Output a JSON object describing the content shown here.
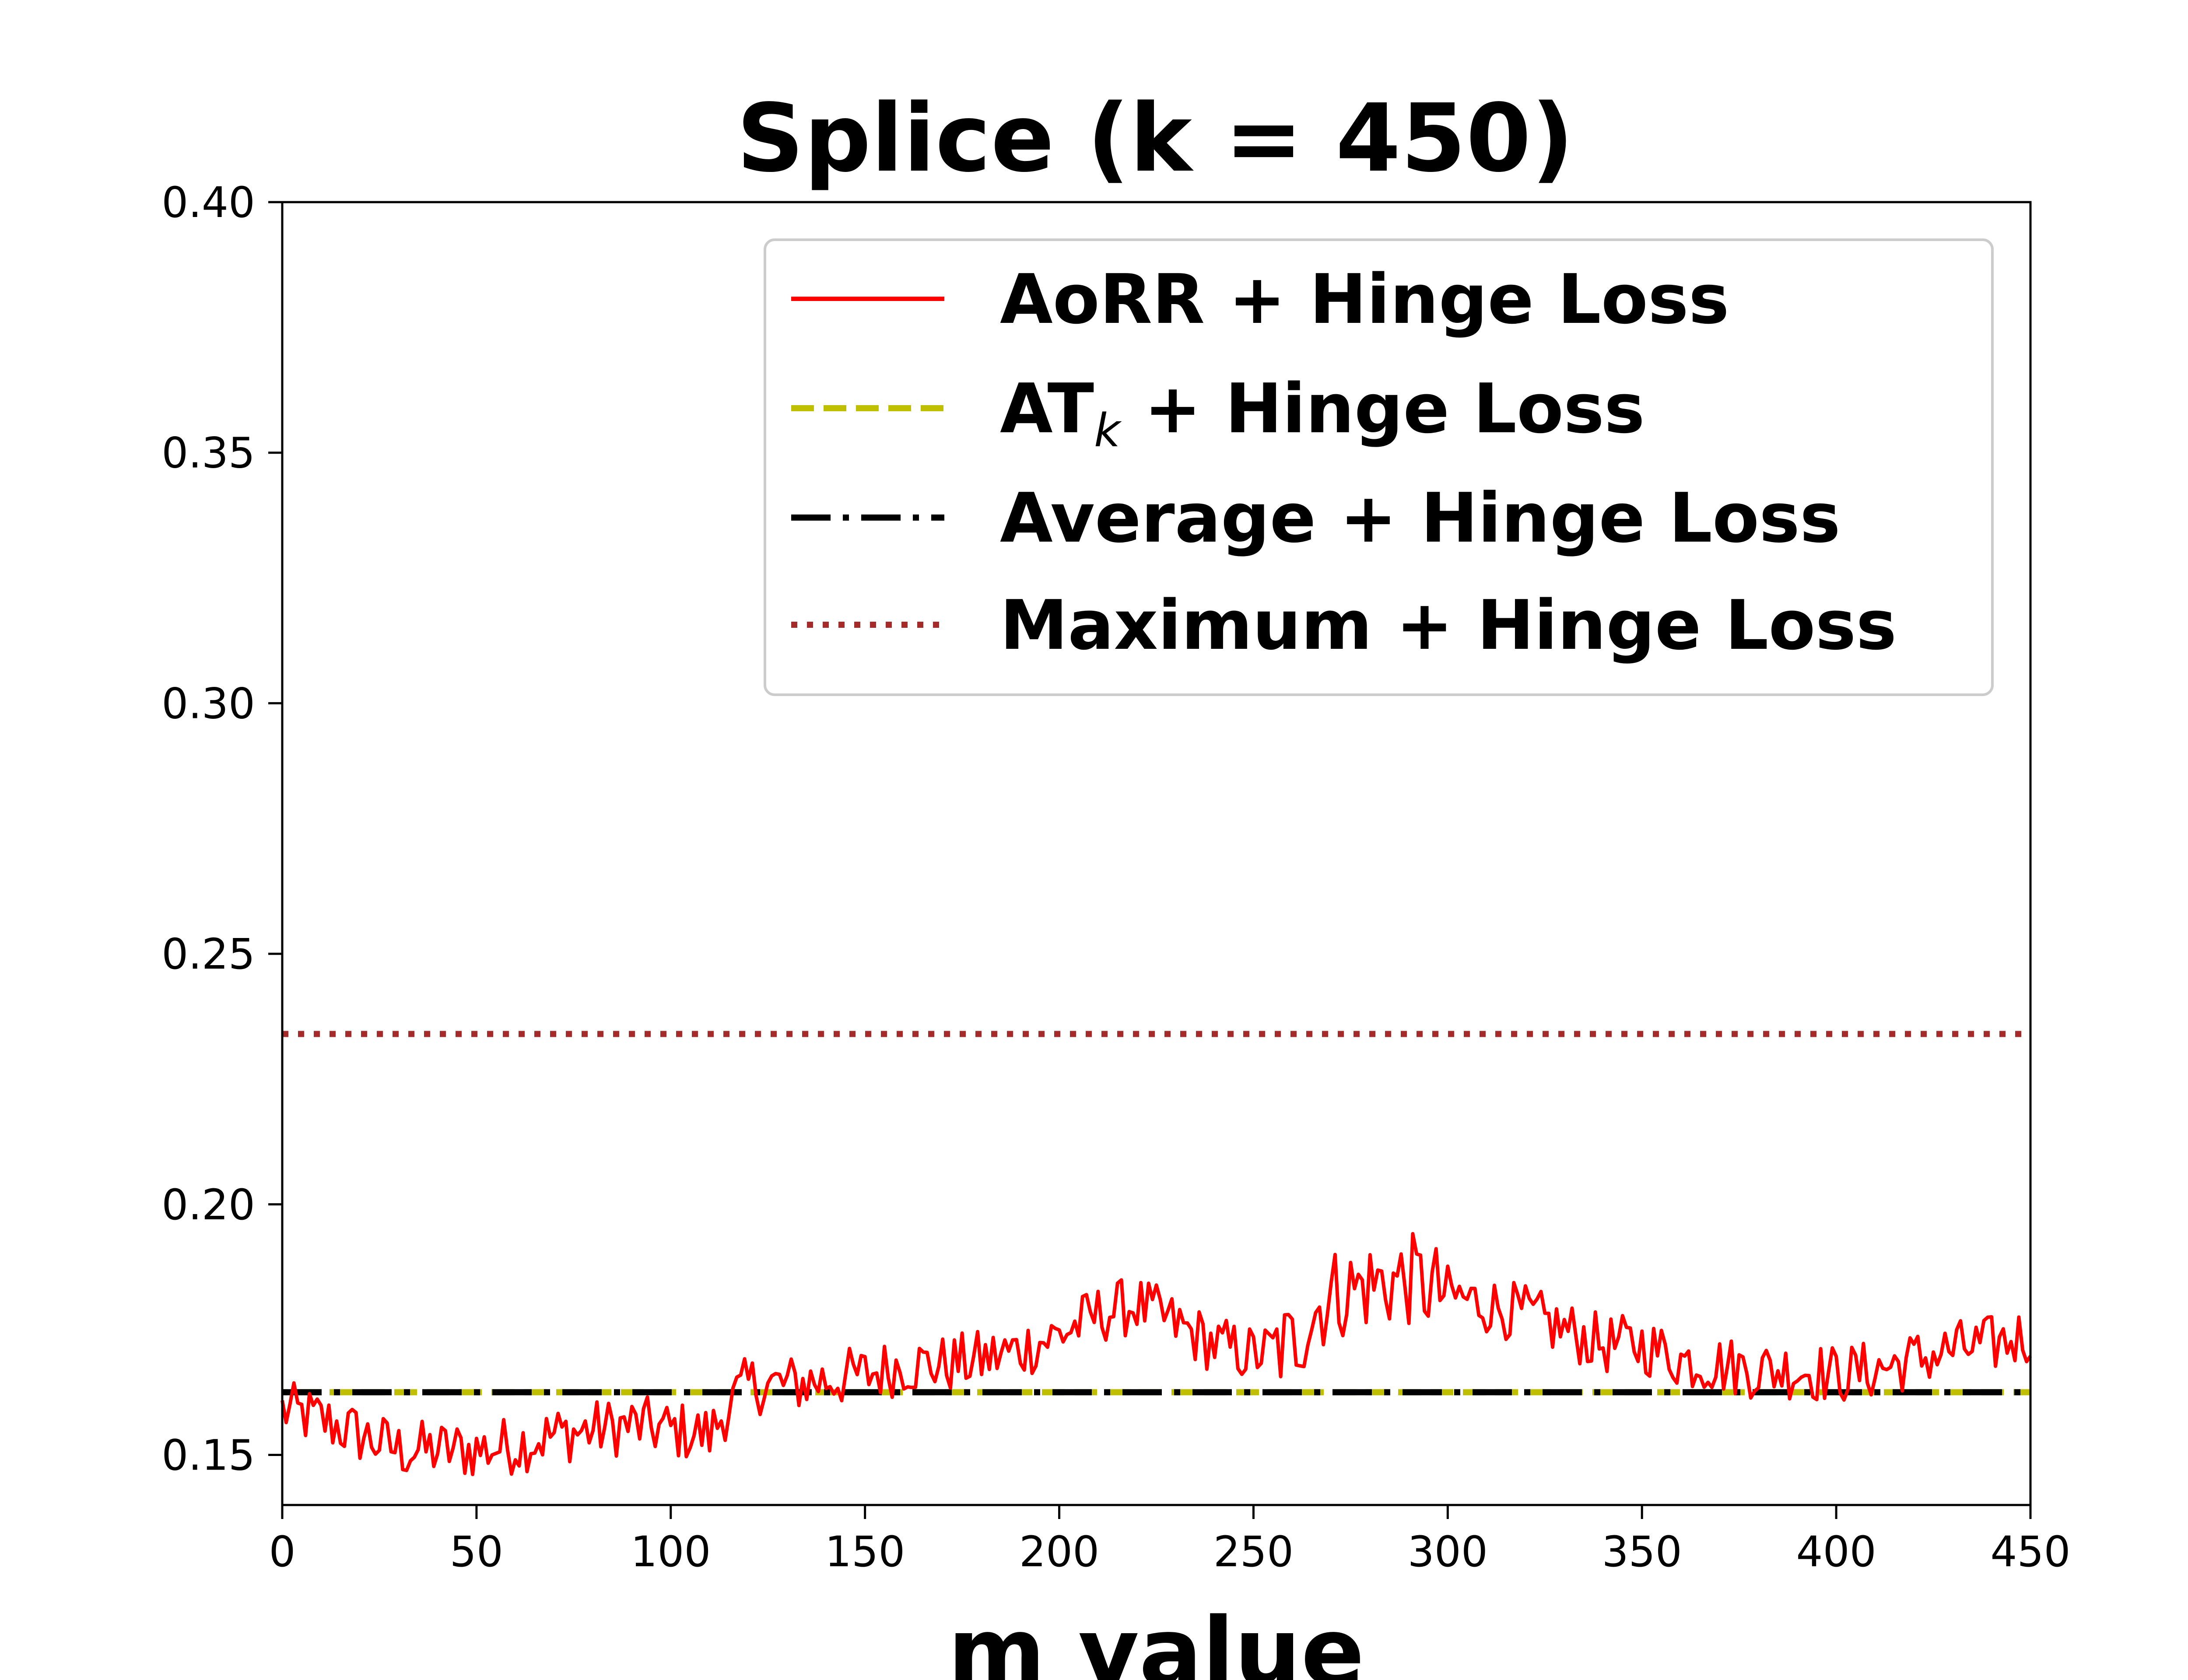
{
  "chart_data": {
    "type": "line",
    "title": "Splice (k = 450)",
    "xlabel": "m value",
    "ylabel": "",
    "xlim": [
      0,
      450
    ],
    "ylim": [
      0.14,
      0.4
    ],
    "xticks": [
      "0",
      "50",
      "100",
      "150",
      "200",
      "250",
      "300",
      "350",
      "400",
      "450"
    ],
    "yticks": [
      "0.15",
      "0.20",
      "0.25",
      "0.30",
      "0.35",
      "0.40"
    ],
    "grid": false,
    "legend_position": "upper right",
    "series": [
      {
        "name": "AoRR + Hinge Loss",
        "style": "solid",
        "color": "#ff0000",
        "description": "noisy curve",
        "anchors_x": [
          0,
          10,
          20,
          30,
          40,
          50,
          60,
          70,
          80,
          90,
          100,
          110,
          115,
          120,
          130,
          140,
          150,
          160,
          170,
          180,
          190,
          200,
          210,
          220,
          230,
          240,
          250,
          260,
          265,
          270,
          280,
          290,
          300,
          310,
          320,
          330,
          340,
          350,
          360,
          370,
          380,
          390,
          400,
          410,
          420,
          430,
          440,
          450
        ],
        "anchors_y": [
          0.159,
          0.157,
          0.154,
          0.151,
          0.151,
          0.151,
          0.152,
          0.154,
          0.155,
          0.156,
          0.155,
          0.154,
          0.16,
          0.164,
          0.164,
          0.165,
          0.166,
          0.168,
          0.168,
          0.169,
          0.171,
          0.174,
          0.178,
          0.18,
          0.176,
          0.172,
          0.17,
          0.172,
          0.178,
          0.182,
          0.184,
          0.185,
          0.182,
          0.18,
          0.178,
          0.175,
          0.172,
          0.172,
          0.169,
          0.168,
          0.167,
          0.167,
          0.166,
          0.167,
          0.169,
          0.171,
          0.172,
          0.174
        ],
        "noise": 0.006
      },
      {
        "name": "AT_k + Hinge Loss",
        "style": "dashed",
        "color": "#bfbf00",
        "value": 0.1625
      },
      {
        "name": "Average + Hinge Loss",
        "style": "dashdot",
        "color": "#000000",
        "value": 0.1625
      },
      {
        "name": "Maximum + Hinge Loss",
        "style": "dotted",
        "color": "#a52a2a",
        "value": 0.234
      }
    ],
    "legend": {
      "aorr": "AoRR + Hinge Loss",
      "atk_main": "AT",
      "atk_sub": "k",
      "atk_rest": " + Hinge Loss",
      "average": "Average + Hinge Loss",
      "maximum": "Maximum + Hinge Loss"
    }
  }
}
